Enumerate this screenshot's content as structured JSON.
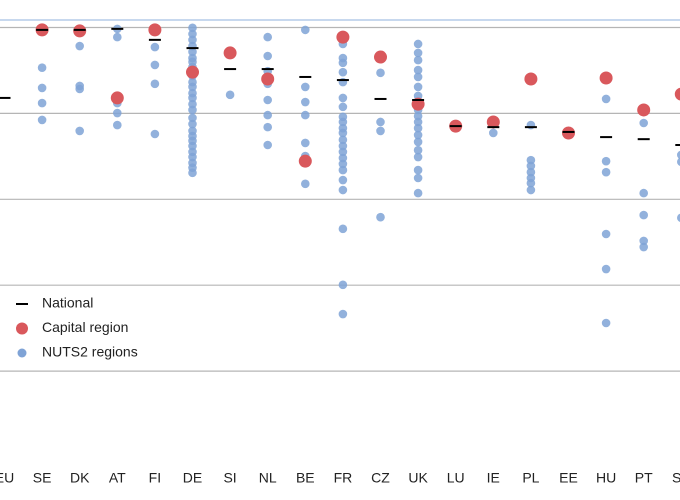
{
  "chart_data": {
    "type": "scatter",
    "categories": [
      "EU",
      "SE",
      "DK",
      "AT",
      "FI",
      "DE",
      "SI",
      "NL",
      "BE",
      "FR",
      "CZ",
      "UK",
      "LU",
      "IE",
      "PL",
      "EE",
      "HU",
      "PT",
      "SK"
    ],
    "ylim": [
      -25,
      108
    ],
    "yticks": [
      0,
      25,
      50,
      75,
      100
    ],
    "grid": true,
    "legend": "lower-left",
    "series": [
      {
        "name": "National",
        "color": "#000000",
        "marker": "dash",
        "values": [
          79.5,
          99.3,
          99.3,
          99.6,
          96.4,
          94,
          87.9,
          87.9,
          85.6,
          84.7,
          79.2,
          78.9,
          71.3,
          71,
          71,
          69.6,
          68.1,
          67.5,
          65.8
        ]
      },
      {
        "name": "Capital region",
        "color": "#d9585c",
        "marker": "big-dot",
        "values": [
          null,
          99.3,
          99,
          79.5,
          99.3,
          87,
          92.6,
          85,
          61.1,
          97.2,
          91.4,
          77.7,
          71.3,
          72.5,
          85,
          69.3,
          85.3,
          76,
          80.6
        ]
      },
      {
        "name": "NUTS2 regions",
        "color": "#7fa3d6",
        "marker": "dot",
        "values": [
          [],
          [
            99.3,
            88.3,
            82.4,
            78,
            73.1
          ],
          [
            99.3,
            94.6,
            83,
            82.1,
            69.9
          ],
          [
            99.6,
            97.2,
            78,
            75.1,
            71.6
          ],
          [
            99.3,
            94.3,
            89.1,
            83.6,
            69
          ],
          [
            99.9,
            98.1,
            96.4,
            94.6,
            92.9,
            91.1,
            90,
            88.5,
            87,
            85.9,
            84.1,
            82.7,
            80.9,
            79.5,
            77.7,
            76,
            73.7,
            71.9,
            69.9,
            68.4,
            67,
            65.5,
            63.8,
            62.3,
            60.6,
            59.2,
            57.7
          ],
          [
            80.4
          ],
          [
            97.2,
            91.7,
            87.3,
            85.6,
            83.6,
            78.9,
            74.5,
            71,
            65.8
          ],
          [
            99.3,
            82.7,
            78.3,
            74.5,
            66.4,
            62.6,
            54.5
          ],
          [
            97.2,
            95.2,
            91.1,
            89.7,
            87,
            84.1,
            79.5,
            76.9,
            74,
            72.5,
            70.7,
            69.3,
            67.3,
            65.5,
            63.8,
            62,
            60.3,
            58.5,
            55.6,
            52.7,
            41.4,
            25.1,
            16.6
          ],
          [
            86.8,
            72.5,
            69.9,
            44.8
          ],
          [
            95.2,
            92.6,
            90.5,
            87.6,
            85.6,
            82.7,
            80.1,
            78,
            76,
            74.2,
            72.5,
            70.7,
            68.7,
            66.7,
            64.3,
            62.3,
            58.5,
            56.2,
            51.8
          ],
          [
            71.3
          ],
          [
            72.5,
            69.3
          ],
          [
            85,
            71.6,
            61.4,
            59.7,
            57.9,
            56.2,
            54.7,
            52.7
          ],
          [
            69.6
          ],
          [
            79.2,
            61.1,
            57.9,
            39.9,
            29.7,
            14
          ],
          [
            76,
            72.2,
            51.8,
            45.4,
            37.9,
            36.1
          ],
          [
            62.9,
            60.9,
            44.6
          ]
        ]
      }
    ]
  }
}
